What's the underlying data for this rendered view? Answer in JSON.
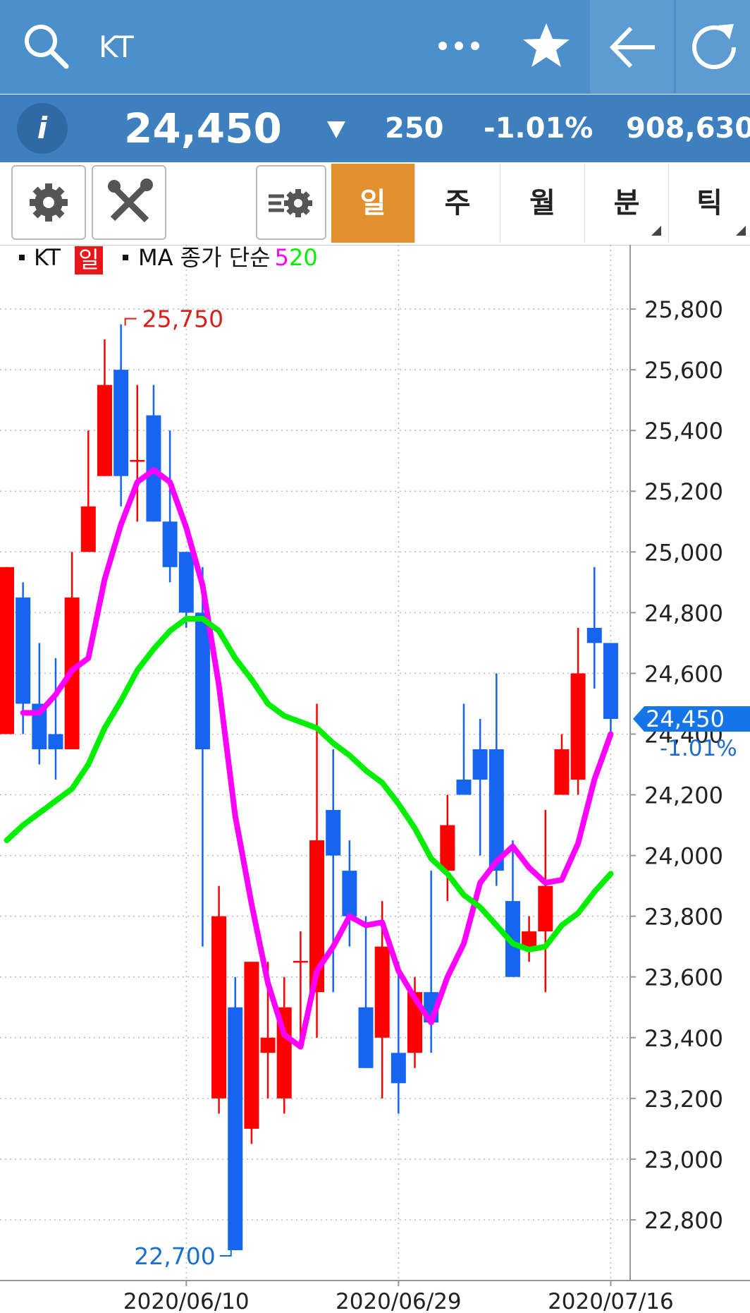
{
  "header": {
    "search_text": "KT"
  },
  "quote": {
    "price": "24,450",
    "change": "250",
    "change_pct": "-1.01%",
    "volume": "908,630"
  },
  "tabs": [
    "일",
    "주",
    "월",
    "분",
    "틱"
  ],
  "chart_data": {
    "type": "candlestick",
    "candle_name": "KT",
    "period_badge": "일",
    "ma_label": "MA 종가 단순",
    "categories": [
      null,
      null,
      null,
      null,
      null,
      null,
      null,
      null,
      null,
      null,
      null,
      "2020/06/10",
      null,
      null,
      null,
      null,
      null,
      null,
      null,
      null,
      null,
      null,
      null,
      null,
      "2020/06/29",
      null,
      null,
      null,
      null,
      null,
      null,
      null,
      null,
      null,
      null,
      null,
      null,
      "2020/07/16"
    ],
    "open": [
      24400,
      24850,
      24500,
      24400,
      24350,
      25000,
      25250,
      25600,
      25300,
      25450,
      25100,
      25000,
      24800,
      23200,
      23500,
      23100,
      23350,
      23200,
      23650,
      23550,
      24150,
      23950,
      23500,
      23400,
      23350,
      23350,
      23550,
      23950,
      24250,
      24350,
      24350,
      23850,
      23700,
      23750,
      24200,
      24250,
      24750,
      24700
    ],
    "high": [
      24950,
      24900,
      24700,
      24650,
      25000,
      25400,
      25700,
      25750,
      25550,
      25550,
      25400,
      25000,
      24950,
      23900,
      23600,
      23650,
      23650,
      23600,
      23750,
      24500,
      24350,
      24050,
      23800,
      23850,
      23650,
      23600,
      23950,
      24200,
      24500,
      24450,
      24600,
      24050,
      23800,
      24150,
      24400,
      24750,
      24950,
      24700
    ],
    "low": [
      24400,
      24400,
      24300,
      24250,
      24350,
      25000,
      25250,
      25150,
      25100,
      25100,
      24900,
      24750,
      23700,
      23150,
      22700,
      23050,
      23200,
      23150,
      23400,
      23400,
      23550,
      23700,
      23300,
      23200,
      23150,
      23300,
      23350,
      23850,
      24200,
      24000,
      23900,
      23600,
      23650,
      23550,
      24200,
      24200,
      24550,
      24400
    ],
    "close": [
      24950,
      24500,
      24350,
      24350,
      24850,
      25150,
      25550,
      25250,
      25300,
      25100,
      24950,
      24800,
      24350,
      23800,
      22700,
      23650,
      23400,
      23500,
      23650,
      24050,
      24000,
      23800,
      23300,
      23700,
      23250,
      23550,
      23450,
      24100,
      24200,
      24250,
      23950,
      23600,
      23750,
      23900,
      24350,
      24600,
      24700,
      24450
    ],
    "up_color": "#ff0000",
    "down_color": "#1565f0",
    "series": [
      {
        "name": "5",
        "color": "#ff00ff",
        "values": [
          null,
          24470,
          24470,
          24530,
          24610,
          24650,
          24910,
          25090,
          25230,
          25270,
          25230,
          25080,
          24890,
          24560,
          24130,
          23840,
          23580,
          23410,
          23370,
          23620,
          23700,
          23800,
          23770,
          23780,
          23620,
          23530,
          23450,
          23600,
          23710,
          23910,
          23980,
          24030,
          23960,
          23910,
          23920,
          24040,
          24250,
          24400
        ]
      },
      {
        "name": "20",
        "color": "#00ee00",
        "values": [
          24050,
          24100,
          24140,
          24180,
          24220,
          24300,
          24420,
          24510,
          24610,
          24680,
          24740,
          24780,
          24780,
          24740,
          24650,
          24580,
          24500,
          24460,
          24440,
          24420,
          24370,
          24330,
          24280,
          24240,
          24170,
          24090,
          23990,
          23940,
          23870,
          23830,
          23770,
          23710,
          23690,
          23700,
          23770,
          23810,
          23880,
          23940
        ]
      }
    ],
    "ylim": [
      22600,
      26000
    ],
    "yticks": [
      {
        "value": 22800,
        "label": "22,800"
      },
      {
        "value": 23000,
        "label": "23,000"
      },
      {
        "value": 23200,
        "label": "23,200"
      },
      {
        "value": 23400,
        "label": "23,400"
      },
      {
        "value": 23600,
        "label": "23,600"
      },
      {
        "value": 23800,
        "label": "23,800"
      },
      {
        "value": 24000,
        "label": "24,000"
      },
      {
        "value": 24200,
        "label": "24,200"
      },
      {
        "value": 24400,
        "label": "24,400"
      },
      {
        "value": 24600,
        "label": "24,600"
      },
      {
        "value": 24800,
        "label": "24,800"
      },
      {
        "value": 25000,
        "label": "25,000"
      },
      {
        "value": 25200,
        "label": "25,200"
      },
      {
        "value": 25400,
        "label": "25,400"
      },
      {
        "value": 25600,
        "label": "25,600"
      },
      {
        "value": 25800,
        "label": "25,800"
      }
    ],
    "grid": true,
    "high_label": {
      "value": 25750,
      "label": "25,750"
    },
    "low_label": {
      "value": 22700,
      "label": "22,700"
    },
    "last_label": {
      "value": 24450,
      "label": "24,450"
    },
    "change_label": "-1.01%"
  }
}
